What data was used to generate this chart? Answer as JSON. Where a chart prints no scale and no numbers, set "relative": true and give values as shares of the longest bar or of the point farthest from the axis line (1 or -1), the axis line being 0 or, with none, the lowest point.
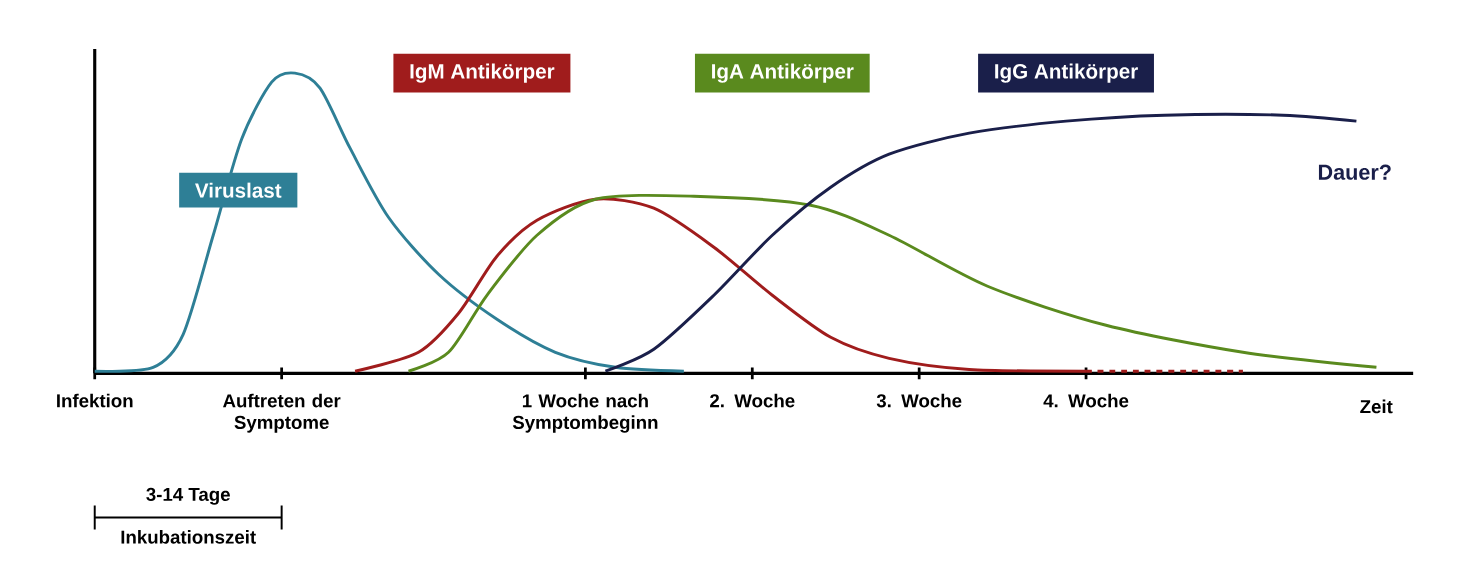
{
  "chart_data": {
    "type": "line",
    "relative": true,
    "tick_labels": "x",
    "xlabel": "Zeit",
    "xlim": [
      -1.94,
      5.96
    ],
    "xticks": [
      {
        "value": -1.94,
        "label": "Infektion"
      },
      {
        "value": -0.82,
        "label": "Auftreten der Symptome"
      },
      {
        "value": 1,
        "label": "1 Woche nach Symptombeginn"
      },
      {
        "value": 2,
        "label": "2. Woche"
      },
      {
        "value": 3,
        "label": "3. Woche"
      },
      {
        "value": 4,
        "label": "4. Woche"
      }
    ],
    "series": [
      {
        "name": "Viruslast",
        "color": "#2e7f96",
        "x": [
          -1.94,
          -1.59,
          -1.41,
          -1.23,
          -1.06,
          -0.88,
          -0.74,
          -0.59,
          -0.41,
          -0.18,
          0.12,
          0.47,
          0.82,
          1.18,
          1.59
        ],
        "values": [
          0.007,
          0.02,
          0.13,
          0.46,
          0.78,
          0.97,
          1.0,
          0.95,
          0.75,
          0.52,
          0.33,
          0.18,
          0.07,
          0.02,
          0.007
        ]
      },
      {
        "name": "IgM Antikörper",
        "color": "#a01c1c",
        "x": [
          -0.38,
          0,
          0.24,
          0.47,
          0.71,
          1.06,
          1.41,
          1.77,
          2.12,
          2.47,
          2.82,
          3.3,
          4.0
        ],
        "values": [
          0.007,
          0.07,
          0.2,
          0.39,
          0.51,
          0.58,
          0.55,
          0.42,
          0.26,
          0.12,
          0.05,
          0.013,
          0.007
        ]
      },
      {
        "name": "IgA Antikörper",
        "color": "#5a8a1e",
        "x": [
          -0.06,
          0.18,
          0.41,
          0.71,
          1.06,
          1.65,
          2.35,
          2.82,
          3.41,
          4.12,
          4.94,
          5.74
        ],
        "values": [
          0.007,
          0.07,
          0.26,
          0.46,
          0.58,
          0.59,
          0.56,
          0.46,
          0.29,
          0.16,
          0.07,
          0.02
        ]
      },
      {
        "name": "IgG Antikörper",
        "color": "#1a1f4a",
        "x": [
          1.12,
          1.41,
          1.77,
          2.12,
          2.47,
          2.82,
          3.3,
          3.88,
          4.47,
          5.18,
          5.62
        ],
        "values": [
          0.007,
          0.08,
          0.26,
          0.46,
          0.62,
          0.73,
          0.8,
          0.84,
          0.86,
          0.86,
          0.84
        ]
      },
      {
        "color": "#a01c1c",
        "line_style": "dashed",
        "x": [
          4.0,
          4.94
        ],
        "values": [
          0.007,
          0.007
        ]
      }
    ],
    "annotations": [
      "Dauer?",
      "3-14 Tage",
      "Inkubationszeit"
    ]
  }
}
